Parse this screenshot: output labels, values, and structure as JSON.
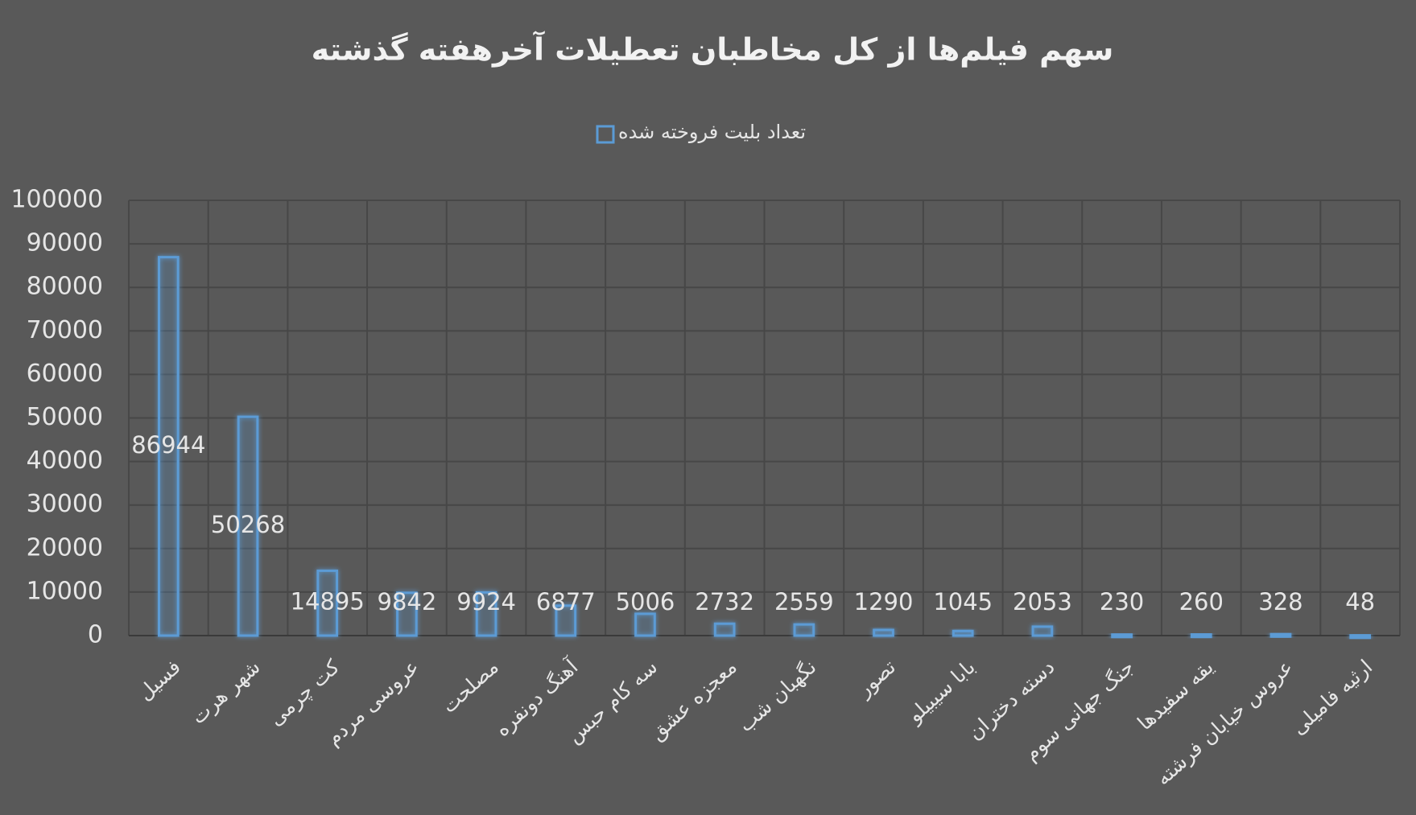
{
  "chart_data": {
    "type": "bar",
    "title": "سهم فیلم‌ها از کل مخاطبان تعطیلات آخرهفته گذشته",
    "categories": [
      "فسیل",
      "شهر هرت",
      "کت چرمی",
      "عروسی مردم",
      "مصلحت",
      "آهنگ دونفره",
      "سه کام حبس",
      "معجزه عشق",
      "نگهبان شب",
      "تصور",
      "بابا سیبیلو",
      "دسته دختران",
      "جنگ جهانی سوم",
      "یقه سفیدها",
      "عروس خیابان فرشته",
      "ارثیه فامیلی"
    ],
    "series": [
      {
        "name": "تعداد بلیت فروخته شده",
        "color": "#5b9bd5",
        "values": [
          86944,
          50268,
          14895,
          9842,
          9924,
          6877,
          5006,
          2732,
          2559,
          1290,
          1045,
          2053,
          230,
          260,
          328,
          48
        ]
      }
    ],
    "ylim": [
      0,
      100000
    ],
    "yticks": [
      0,
      10000,
      20000,
      30000,
      40000,
      50000,
      60000,
      70000,
      80000,
      90000,
      100000
    ],
    "grid": true,
    "legend": "top"
  }
}
